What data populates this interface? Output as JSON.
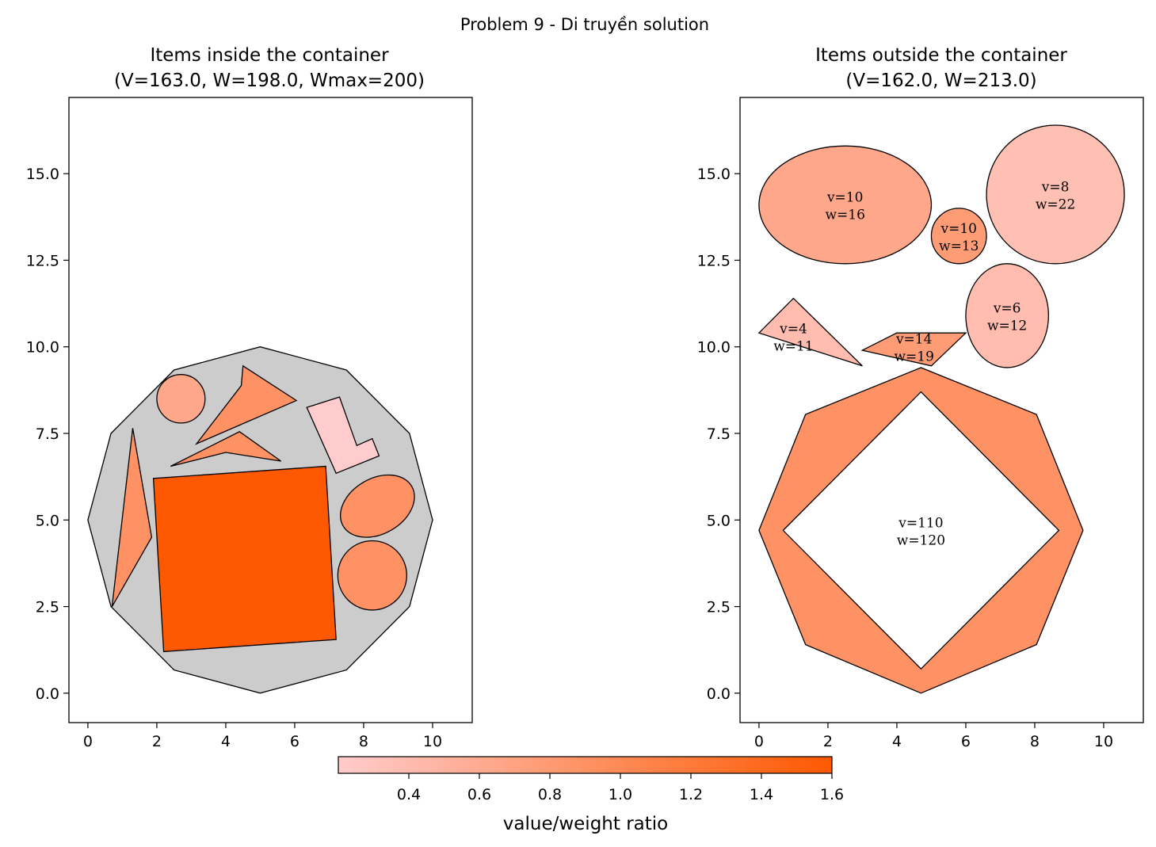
{
  "figure": {
    "suptitle": "Problem 9 - Di truyền solution"
  },
  "chart_data": [
    {
      "type": "other",
      "title_line1": "Items inside the container",
      "title_line2": "(V=163.0, W=198.0, Wmax=200)",
      "xlim": [
        -0.55,
        11.15
      ],
      "ylim": [
        -0.85,
        17.2
      ],
      "xticks": [
        0,
        2,
        4,
        6,
        8,
        10
      ],
      "yticks": [
        0.0,
        2.5,
        5.0,
        7.5,
        10.0,
        12.5,
        15.0
      ],
      "container": {
        "shape": "polygon",
        "color": "#cccccc",
        "points": [
          [
            5,
            0
          ],
          [
            7.5,
            0.67
          ],
          [
            9.33,
            2.5
          ],
          [
            10,
            5
          ],
          [
            9.33,
            7.5
          ],
          [
            7.5,
            9.33
          ],
          [
            5,
            10
          ],
          [
            2.5,
            9.33
          ],
          [
            0.67,
            7.5
          ],
          [
            0,
            5
          ],
          [
            0.67,
            2.5
          ],
          [
            2.5,
            0.67
          ]
        ]
      },
      "items": [
        {
          "shape": "circle",
          "cx": 2.7,
          "cy": 8.5,
          "r": 0.7,
          "color": "#fea78a"
        },
        {
          "shape": "polygon",
          "color": "#fe9264",
          "points": [
            [
              3.15,
              7.2
            ],
            [
              4.45,
              8.88
            ],
            [
              4.5,
              9.45
            ],
            [
              6.05,
              8.45
            ]
          ]
        },
        {
          "shape": "polygon",
          "color": "#fe9264",
          "points": [
            [
              2.4,
              6.55
            ],
            [
              4.4,
              7.55
            ],
            [
              5.6,
              6.7
            ],
            [
              4.0,
              6.95
            ]
          ]
        },
        {
          "shape": "polygon",
          "color": "#fecccc",
          "points": [
            [
              6.35,
              8.25
            ],
            [
              7.3,
              8.55
            ],
            [
              7.8,
              7.15
            ],
            [
              8.25,
              7.35
            ],
            [
              8.45,
              6.85
            ],
            [
              7.2,
              6.35
            ]
          ]
        },
        {
          "shape": "polygon",
          "color": "#fe9264",
          "points": [
            [
              0.7,
              2.5
            ],
            [
              1.3,
              7.65
            ],
            [
              1.85,
              4.5
            ]
          ]
        },
        {
          "shape": "polygon",
          "color": "#fe5900",
          "points": [
            [
              1.9,
              6.2
            ],
            [
              6.9,
              6.55
            ],
            [
              7.2,
              1.55
            ],
            [
              2.2,
              1.2
            ]
          ]
        },
        {
          "shape": "ellipse",
          "cx": 8.4,
          "cy": 5.4,
          "rx": 1.15,
          "ry": 0.8,
          "rotation": 30,
          "color": "#fe9264"
        },
        {
          "shape": "circle",
          "cx": 8.25,
          "cy": 3.4,
          "r": 1.0,
          "color": "#fe9264"
        }
      ]
    },
    {
      "type": "other",
      "title_line1": "Items outside the container",
      "title_line2": "(V=162.0, W=213.0)",
      "xlim": [
        -0.55,
        11.15
      ],
      "ylim": [
        -0.85,
        17.2
      ],
      "xticks": [
        0,
        2,
        4,
        6,
        8,
        10
      ],
      "yticks": [
        0.0,
        2.5,
        5.0,
        7.5,
        10.0,
        12.5,
        15.0
      ],
      "items": [
        {
          "shape": "ellipse",
          "cx": 2.5,
          "cy": 14.1,
          "rx": 2.5,
          "ry": 1.7,
          "rotation": 0,
          "color": "#fea78a",
          "label_v": "v=10",
          "label_w": "w=16"
        },
        {
          "shape": "circle",
          "cx": 5.8,
          "cy": 13.2,
          "r": 0.8,
          "color": "#fe9c75",
          "label_v": "v=10",
          "label_w": "w=13"
        },
        {
          "shape": "circle",
          "cx": 8.6,
          "cy": 14.4,
          "r": 2.0,
          "color": "#ffc0b4",
          "label_v": "v=8",
          "label_w": "w=22"
        },
        {
          "shape": "ellipse",
          "cx": 7.2,
          "cy": 10.9,
          "rx": 1.2,
          "ry": 1.5,
          "rotation": 0,
          "color": "#ffbcaf",
          "label_v": "v=6",
          "label_w": "w=12"
        },
        {
          "shape": "polygon",
          "color": "#ffbcaf",
          "points": [
            [
              0,
              10.4
            ],
            [
              1,
              11.4
            ],
            [
              3,
              9.45
            ]
          ],
          "label_at": [
            1.0,
            10.3
          ],
          "label_v": "v=4",
          "label_w": "w=11"
        },
        {
          "shape": "polygon",
          "color": "#fe9c75",
          "points": [
            [
              3,
              9.9
            ],
            [
              4,
              10.4
            ],
            [
              6,
              10.4
            ],
            [
              5,
              9.45
            ]
          ],
          "label_at": [
            4.5,
            10.0
          ],
          "label_v": "v=14",
          "label_w": "w=19"
        },
        {
          "shape": "octagon-ring",
          "color": "#fe9264",
          "outer": [
            [
              4.7,
              0
            ],
            [
              8.05,
              1.4
            ],
            [
              9.4,
              4.7
            ],
            [
              8.05,
              8.05
            ],
            [
              4.7,
              9.4
            ],
            [
              1.35,
              8.05
            ],
            [
              0,
              4.7
            ],
            [
              1.35,
              1.4
            ]
          ],
          "inner": [
            [
              4.7,
              0.7
            ],
            [
              8.7,
              4.7
            ],
            [
              4.7,
              8.7
            ],
            [
              0.7,
              4.7
            ]
          ],
          "label_at": [
            4.7,
            4.7
          ],
          "label_v": "v=110",
          "label_w": "w=120"
        }
      ]
    }
  ],
  "colorbar": {
    "label": "value/weight ratio",
    "min": 0.2,
    "max": 1.6,
    "ticks": [
      0.4,
      0.6,
      0.8,
      1.0,
      1.2,
      1.4,
      1.6
    ],
    "tick_labels": [
      "0.4",
      "0.6",
      "0.8",
      "1.0",
      "1.2",
      "1.4",
      "1.6"
    ],
    "color_low": "#ffcccc",
    "color_mid": "#fe9264",
    "color_high": "#fe5900"
  }
}
